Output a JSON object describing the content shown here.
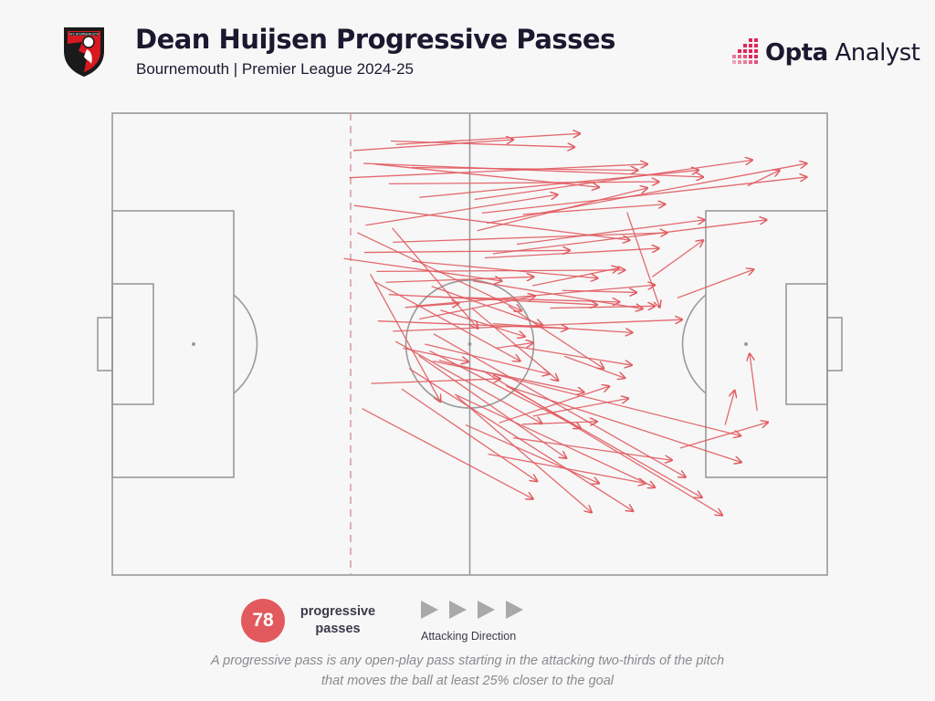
{
  "header": {
    "title": "Dean Huijsen Progressive Passes",
    "subtitle": "Bournemouth | Premier League 2024-25",
    "crest_text": "AFC BOURNEMOUTH",
    "brand_bold": "Opta",
    "brand_light": " Analyst"
  },
  "colors": {
    "pass": "#e05a5f",
    "pitch_line": "#9a9a9a",
    "badge": "#e25a5e",
    "brand_accent": "#e0255b",
    "arrow_icon": "#a9a9a9"
  },
  "legend": {
    "count": "78",
    "count_label": "progressive passes",
    "direction_label": "Attacking Direction"
  },
  "footnote": {
    "line1": "A progressive pass is any open-play pass starting in the attacking two-thirds of the pitch",
    "line2": "that moves the ball at least 25% closer to the goal"
  },
  "chart_data": {
    "type": "pass-map",
    "pitch_length_m": 105,
    "pitch_width_m": 68,
    "attacking_direction": "left-to-right",
    "total_passes": 78,
    "passes": [
      [
        35.4,
        5.5,
        58.9,
        3.9
      ],
      [
        40.9,
        4.1,
        67.9,
        5.0
      ],
      [
        41.7,
        4.6,
        68.7,
        3.0
      ],
      [
        43.9,
        8.0,
        77.2,
        8.4
      ],
      [
        38.6,
        7.5,
        71.5,
        10.9
      ],
      [
        34.8,
        9.5,
        78.6,
        7.5
      ],
      [
        40.6,
        10.4,
        80.3,
        10.1
      ],
      [
        36.9,
        7.4,
        86.8,
        9.4
      ],
      [
        45.1,
        12.4,
        86.1,
        8.4
      ],
      [
        53.2,
        12.7,
        94.0,
        6.9
      ],
      [
        55.0,
        16.2,
        102.0,
        7.4
      ],
      [
        54.3,
        14.7,
        102.0,
        9.4
      ],
      [
        35.5,
        13.6,
        76.0,
        18.7
      ],
      [
        37.2,
        16.5,
        65.4,
        12.0
      ],
      [
        53.6,
        17.3,
        78.6,
        11.0
      ],
      [
        60.3,
        14.9,
        81.2,
        13.4
      ],
      [
        37.0,
        20.5,
        67.2,
        20.2
      ],
      [
        41.2,
        19.0,
        81.5,
        17.6
      ],
      [
        44.0,
        21.8,
        71.3,
        24.3
      ],
      [
        54.7,
        21.3,
        80.3,
        19.9
      ],
      [
        59.4,
        19.3,
        87.0,
        15.7
      ],
      [
        55.9,
        20.7,
        96.1,
        15.7
      ],
      [
        36.0,
        17.6,
        60.1,
        29.1
      ],
      [
        34.0,
        21.4,
        57.2,
        24.7
      ],
      [
        38.8,
        23.3,
        75.3,
        23.1
      ],
      [
        40.2,
        24.9,
        61.9,
        24.1
      ],
      [
        41.1,
        16.9,
        53.7,
        31.7
      ],
      [
        40.6,
        26.7,
        71.2,
        28.2
      ],
      [
        44.5,
        28.4,
        79.7,
        25.3
      ],
      [
        46.0,
        27.0,
        74.5,
        27.8
      ],
      [
        46.9,
        25.5,
        63.2,
        31.2
      ],
      [
        48.2,
        29.0,
        60.6,
        32.9
      ],
      [
        43.0,
        28.6,
        50.9,
        28.0
      ],
      [
        39.0,
        30.6,
        66.9,
        31.7
      ],
      [
        41.2,
        32.1,
        83.7,
        30.4
      ],
      [
        45.1,
        30.3,
        62.1,
        26.9
      ],
      [
        38.5,
        24.8,
        59.9,
        36.5
      ],
      [
        37.9,
        23.7,
        48.2,
        42.5
      ],
      [
        42.7,
        34.6,
        52.3,
        36.6
      ],
      [
        55.9,
        31.0,
        76.4,
        32.3
      ],
      [
        59.0,
        34.3,
        76.3,
        37.1
      ],
      [
        47.1,
        36.5,
        69.3,
        41.1
      ],
      [
        46.6,
        35.0,
        68.8,
        46.4
      ],
      [
        56.3,
        34.6,
        61.8,
        33.8
      ],
      [
        52.8,
        28.7,
        65.5,
        39.4
      ],
      [
        53.0,
        24.7,
        77.9,
        28.8
      ],
      [
        64.3,
        28.7,
        79.7,
        28.4
      ],
      [
        58.2,
        28.4,
        72.2,
        37.6
      ],
      [
        66.1,
        26.1,
        77.0,
        26.4
      ],
      [
        61.7,
        25.4,
        74.4,
        22.8
      ],
      [
        79.3,
        24.1,
        86.8,
        18.7
      ],
      [
        75.6,
        14.6,
        80.4,
        28.6
      ],
      [
        93.3,
        10.7,
        98.0,
        8.4
      ],
      [
        83.0,
        27.2,
        94.2,
        23.0
      ],
      [
        38.0,
        39.8,
        57.0,
        39.1
      ],
      [
        41.6,
        33.6,
        63.1,
        45.7
      ],
      [
        45.9,
        34.0,
        64.2,
        38.4
      ],
      [
        45.0,
        35.7,
        66.7,
        50.8
      ],
      [
        47.2,
        32.5,
        84.2,
        53.6
      ],
      [
        48.0,
        36.4,
        92.3,
        47.5
      ],
      [
        42.5,
        40.6,
        62.4,
        54.2
      ],
      [
        36.7,
        43.5,
        61.8,
        56.8
      ],
      [
        50.6,
        41.7,
        70.4,
        58.8
      ],
      [
        51.9,
        45.9,
        71.5,
        54.5
      ],
      [
        43.6,
        37.6,
        76.5,
        58.6
      ],
      [
        54.4,
        37.9,
        89.6,
        59.2
      ],
      [
        50.3,
        41.4,
        79.7,
        55.1
      ],
      [
        58.3,
        40.3,
        92.4,
        51.4
      ],
      [
        60.2,
        45.8,
        71.2,
        45.4
      ],
      [
        56.8,
        45.6,
        73.0,
        40.2
      ],
      [
        58.9,
        47.8,
        82.2,
        51.1
      ],
      [
        55.2,
        50.2,
        78.3,
        54.5
      ],
      [
        66.4,
        35.8,
        75.3,
        39.0
      ],
      [
        61.8,
        44.6,
        75.8,
        42.0
      ],
      [
        57.8,
        40.1,
        86.6,
        56.6
      ],
      [
        83.4,
        49.3,
        96.3,
        45.5
      ],
      [
        90.0,
        45.9,
        91.4,
        40.8
      ],
      [
        94.7,
        43.8,
        93.6,
        35.4
      ]
    ]
  }
}
